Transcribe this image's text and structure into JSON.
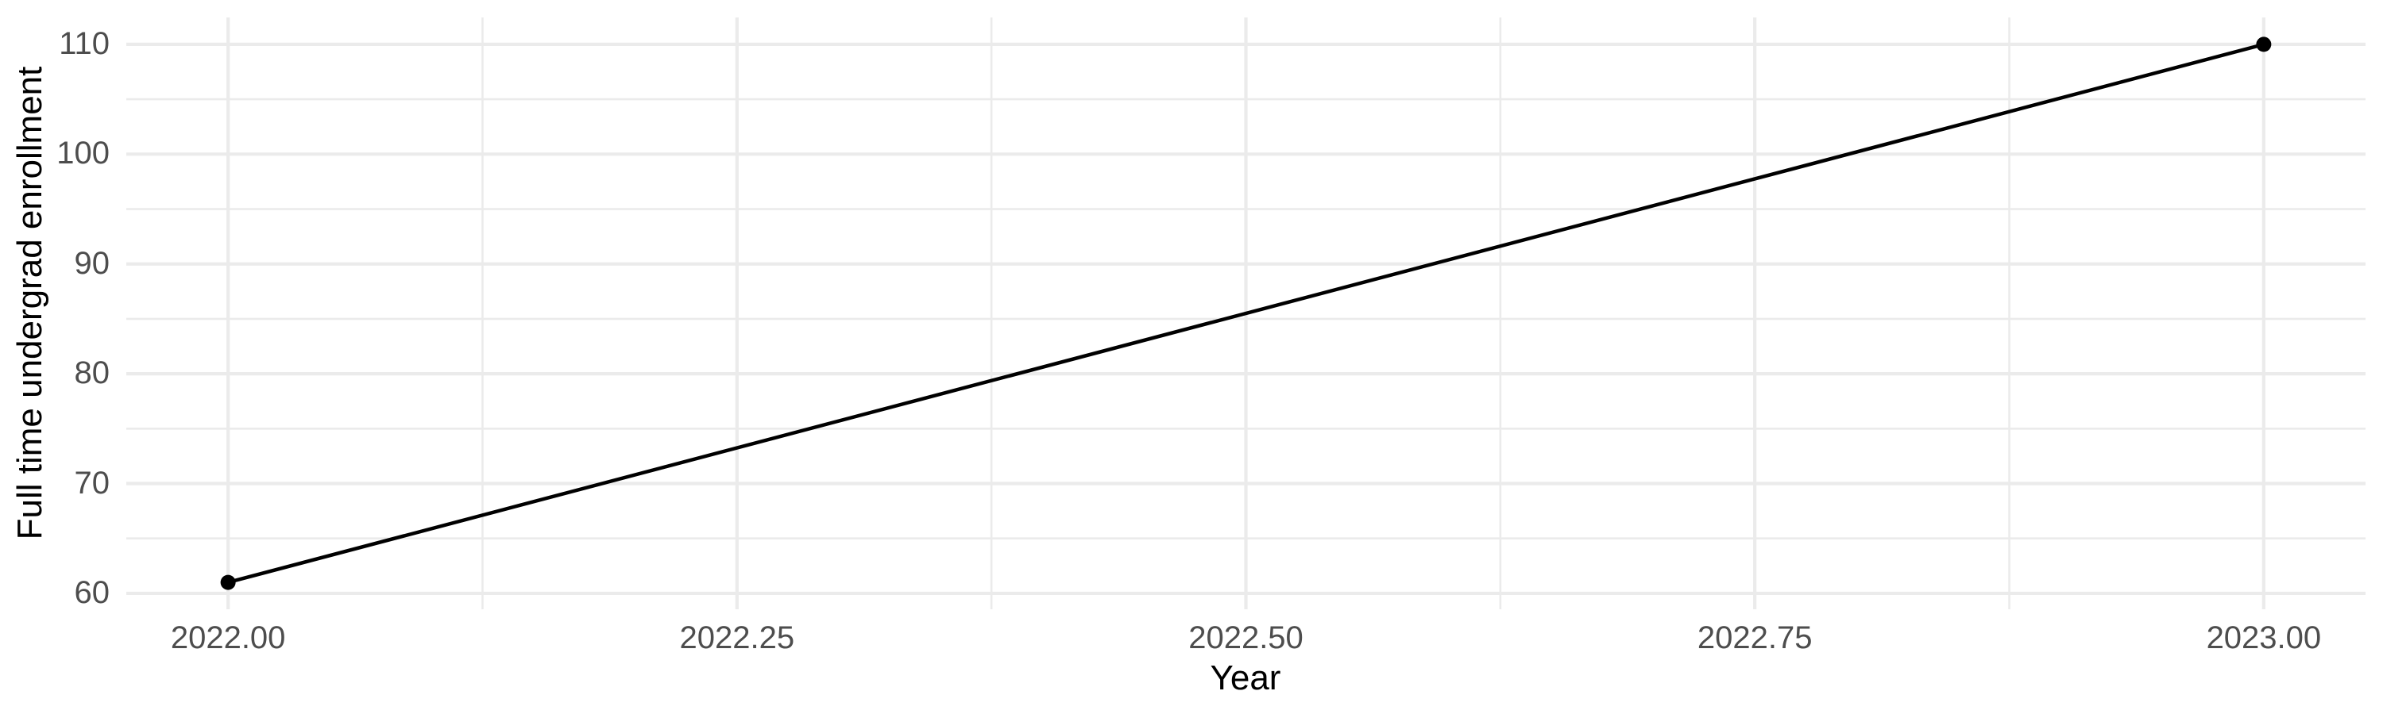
{
  "chart_data": {
    "type": "line",
    "title": "",
    "xlabel": "Year",
    "ylabel": "Full time undergrad enrollment",
    "x": [
      2022,
      2023
    ],
    "y": [
      61,
      110
    ],
    "xlim": [
      2021.95,
      2023.05
    ],
    "ylim": [
      58.55,
      112.45
    ],
    "x_major_ticks": [
      2022.0,
      2022.25,
      2022.5,
      2022.75,
      2023.0
    ],
    "x_tick_labels": [
      "2022.00",
      "2022.25",
      "2022.50",
      "2022.75",
      "2023.00"
    ],
    "x_minor_ticks": [
      2022.125,
      2022.375,
      2022.625,
      2022.875
    ],
    "y_major_ticks": [
      60,
      70,
      80,
      90,
      100,
      110
    ],
    "y_tick_labels": [
      "60",
      "70",
      "80",
      "90",
      "100",
      "110"
    ],
    "y_minor_ticks": [
      65,
      75,
      85,
      95,
      105
    ],
    "grid": "on",
    "legend": "none",
    "style": {
      "background_color": "#FFFFFF",
      "grid_major_color": "#EBEBEB",
      "grid_minor_color": "#EBEBEB",
      "line_color": "#000000",
      "point_color": "#000000",
      "tick_label_color": "#4D4D4D",
      "axis_title_color": "#000000"
    }
  }
}
